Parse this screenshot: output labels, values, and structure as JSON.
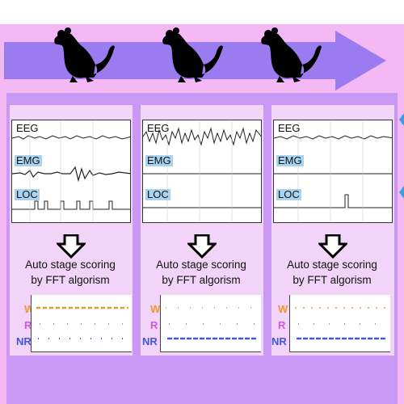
{
  "colors": {
    "background_outer": "#f4b8f4",
    "background_frame": "#c898f4",
    "arrow": "#9a7cf0",
    "stage_W": "#e89a30",
    "stage_R": "#d05ad8",
    "stage_NR": "#4455dd",
    "label_highlight": "#a9d4ef"
  },
  "icons": {
    "mouse": "mouse-silhouette-icon",
    "down_arrow": "down-arrow-icon"
  },
  "columns": [
    {
      "signals": [
        "EEG",
        "EMG",
        "LOC"
      ],
      "caption_line1": "Auto stage scoring",
      "caption_line2": "by FFT algorism",
      "stages": [
        "W",
        "R",
        "NR"
      ],
      "dominant_stage": "W"
    },
    {
      "signals": [
        "EEG",
        "EMG",
        "LOC"
      ],
      "caption_line1": "Auto stage scoring",
      "caption_line2": "by FFT algorism",
      "stages": [
        "W",
        "R",
        "NR"
      ],
      "dominant_stage": "NR"
    },
    {
      "signals": [
        "EEG",
        "EMG",
        "LOC"
      ],
      "caption_line1": "Auto stage scoring",
      "caption_line2": "by FFT algorism",
      "stages": [
        "W",
        "R",
        "NR"
      ],
      "dominant_stage": "NR"
    }
  ]
}
